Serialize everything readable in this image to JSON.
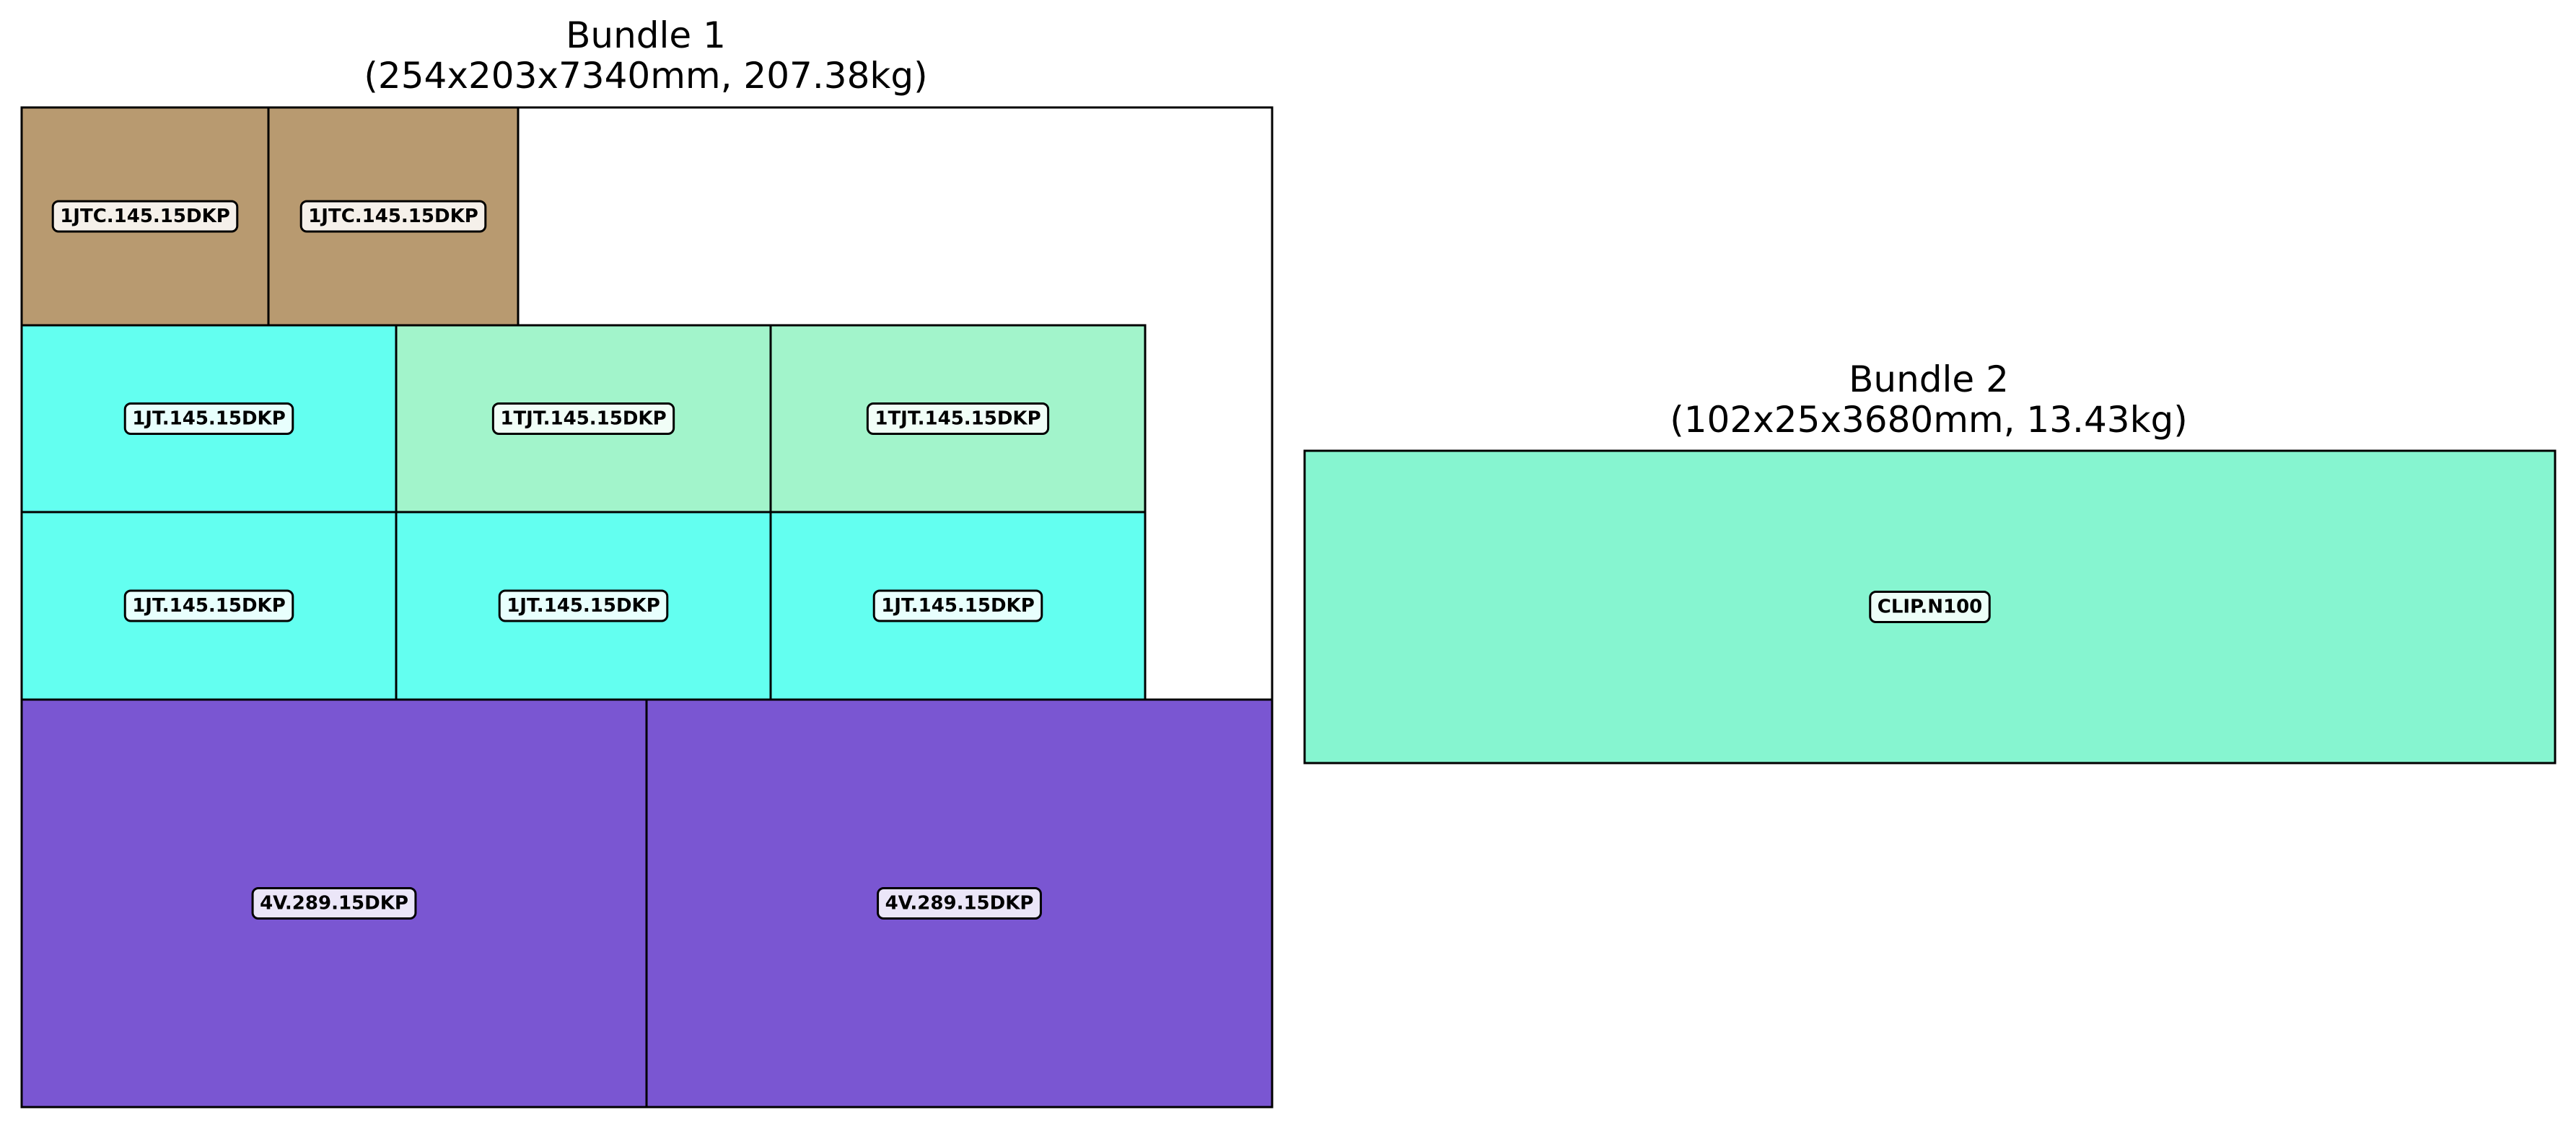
{
  "bundles": [
    {
      "title_line1": "Bundle 1",
      "title_line2": "(254x203x7340mm, 207.38kg)",
      "items": [
        {
          "label": "1JTC.145.15DKP",
          "color": "#b89a70"
        },
        {
          "label": "1JTC.145.15DKP",
          "color": "#b89a70"
        },
        {
          "label": "1JT.145.15DKP",
          "color": "#63fff0"
        },
        {
          "label": "1TJT.145.15DKP",
          "color": "#a2f4cb"
        },
        {
          "label": "1TJT.145.15DKP",
          "color": "#a2f4cb"
        },
        {
          "label": "1JT.145.15DKP",
          "color": "#63fff0"
        },
        {
          "label": "1JT.145.15DKP",
          "color": "#63fff0"
        },
        {
          "label": "1JT.145.15DKP",
          "color": "#63fff0"
        },
        {
          "label": "4V.289.15DKP",
          "color": "#7a56d2"
        },
        {
          "label": "4V.289.15DKP",
          "color": "#7a56d2"
        }
      ]
    },
    {
      "title_line1": "Bundle 2",
      "title_line2": "(102x25x3680mm, 13.43kg)",
      "items": [
        {
          "label": "CLIP.N100",
          "color": "#86f5d0"
        }
      ]
    }
  ]
}
